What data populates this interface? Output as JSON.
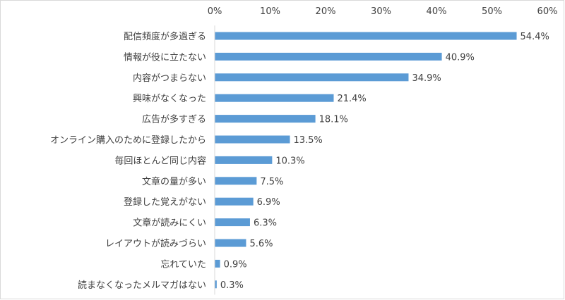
{
  "chart_data": {
    "type": "bar",
    "orientation": "horizontal",
    "title": "",
    "xlabel": "",
    "ylabel": "",
    "xlim": [
      0,
      60
    ],
    "x_ticks": [
      "0%",
      "10%",
      "20%",
      "30%",
      "40%",
      "50%",
      "60%"
    ],
    "x_axis_position": "top",
    "grid": false,
    "legend": "none",
    "bar_color": "#5b9bd5",
    "categories": [
      "配信頻度が多過ぎる",
      "情報が役に立たない",
      "内容がつまらない",
      "興味がなくなった",
      "広告が多すぎる",
      "オンライン購入のために登録したから",
      "毎回ほとんど同じ内容",
      "文章の量が多い",
      "登録した覚えがない",
      "文章が読みにくい",
      "レイアウトが読みづらい",
      "忘れていた",
      "読まなくなったメルマガはない"
    ],
    "values": [
      54.4,
      40.9,
      34.9,
      21.4,
      18.1,
      13.5,
      10.3,
      7.5,
      6.9,
      6.3,
      5.6,
      0.9,
      0.3
    ],
    "data_labels": [
      "54.4%",
      "40.9%",
      "34.9%",
      "21.4%",
      "18.1%",
      "13.5%",
      "10.3%",
      "7.5%",
      "6.9%",
      "6.3%",
      "5.6%",
      "0.9%",
      "0.3%"
    ]
  }
}
